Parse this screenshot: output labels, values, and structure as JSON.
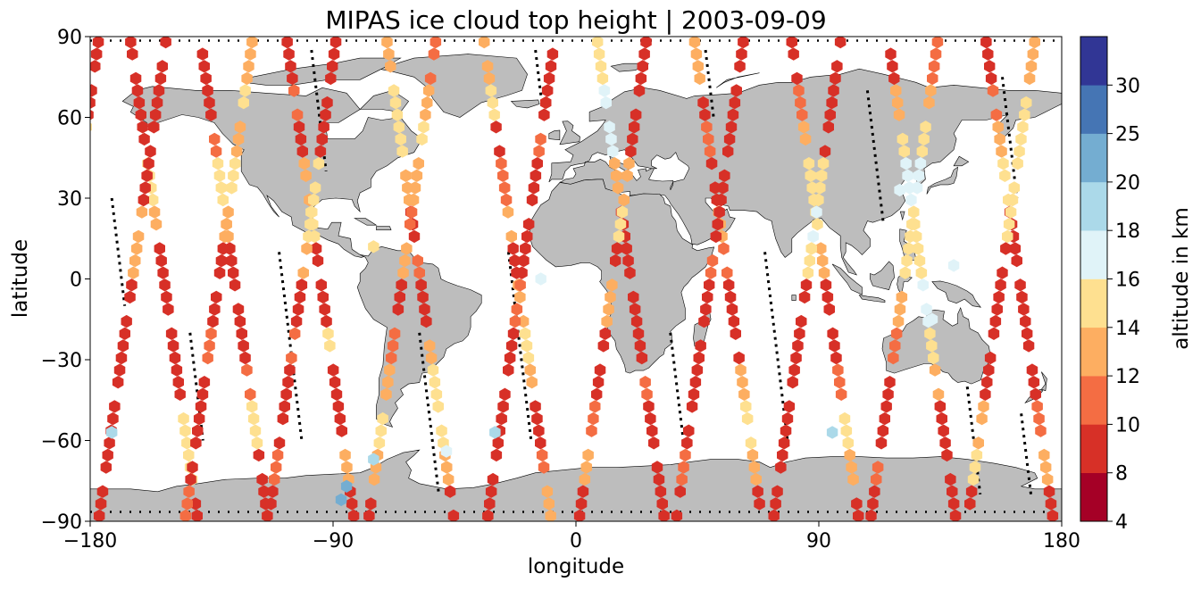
{
  "chart_data": {
    "type": "scatter",
    "title": "MIPAS ice cloud top height | 2003-09-09",
    "xlabel": "longitude",
    "ylabel": "latitude",
    "xlim": [
      -180,
      180
    ],
    "ylim": [
      -90,
      90
    ],
    "xticks": [
      "−180",
      "−90",
      "0",
      "90",
      "180"
    ],
    "xtick_values": [
      -180,
      -90,
      0,
      90,
      180
    ],
    "yticks": [
      "90",
      "60",
      "30",
      "0",
      "−30",
      "−60",
      "−90"
    ],
    "ytick_values": [
      90,
      60,
      30,
      0,
      -30,
      -60,
      -90
    ],
    "grid": false,
    "marker": "hexagon",
    "colorbar": {
      "label": "altitude in km",
      "boundaries": [
        4,
        8,
        10,
        12,
        14,
        16,
        18,
        20,
        25,
        30
      ],
      "tick_labels": [
        "4",
        "8",
        "10",
        "12",
        "14",
        "16",
        "18",
        "20",
        "25",
        "30"
      ],
      "colors": [
        "#a50026",
        "#d73027",
        "#f46d43",
        "#fdae61",
        "#fee090",
        "#e0f3f8",
        "#abd9e9",
        "#74add1",
        "#4575b4",
        "#313695"
      ]
    },
    "land_color": "#bdbdbd",
    "orbits": [
      {
        "lon": -177,
        "dir": "desc",
        "start_alt": 9,
        "pattern": [
          9,
          9,
          14,
          15,
          15,
          9,
          9,
          9,
          14,
          9,
          9,
          8
        ]
      },
      {
        "lon": -165,
        "dir": "asc",
        "start_alt": 8,
        "pattern": [
          8,
          8,
          9,
          14,
          13,
          9,
          8,
          8,
          9,
          14,
          14,
          8
        ]
      },
      {
        "lon": -152,
        "dir": "desc",
        "start_alt": 9,
        "pattern": [
          9,
          9,
          8,
          9,
          13,
          13,
          9,
          8,
          9,
          9,
          9,
          8
        ]
      },
      {
        "lon": -139,
        "dir": "asc",
        "start_alt": 8,
        "pattern": [
          8,
          9,
          10,
          14,
          13,
          8,
          8,
          9,
          10,
          14,
          8,
          9
        ]
      },
      {
        "lon": -120,
        "dir": "desc",
        "start_alt": 13,
        "pattern": [
          13,
          14,
          13,
          15,
          13,
          9,
          9,
          10,
          9,
          9,
          8,
          11
        ]
      },
      {
        "lon": -107,
        "dir": "asc",
        "start_alt": 9,
        "pattern": [
          9,
          10,
          9,
          13,
          14,
          9,
          9,
          14,
          9,
          9,
          13,
          9
        ]
      },
      {
        "lon": -89,
        "dir": "desc",
        "start_alt": 9,
        "pattern": [
          9,
          9,
          8,
          14,
          15,
          13,
          9,
          10,
          9,
          9,
          10,
          8
        ]
      },
      {
        "lon": -70,
        "dir": "asc",
        "start_alt": 13,
        "pattern": [
          13,
          15,
          14,
          13,
          9,
          10,
          9,
          13,
          15,
          14,
          13,
          9
        ]
      },
      {
        "lon": -52,
        "dir": "desc",
        "start_alt": 10,
        "pattern": [
          10,
          13,
          14,
          13,
          10,
          13,
          9,
          10,
          13,
          14,
          13,
          9
        ]
      },
      {
        "lon": -34,
        "dir": "asc",
        "start_alt": 13,
        "pattern": [
          13,
          14,
          9,
          10,
          13,
          9,
          13,
          14,
          13,
          9,
          10,
          13
        ]
      },
      {
        "lon": -8,
        "dir": "desc",
        "start_alt": 9,
        "pattern": [
          9,
          9,
          10,
          8,
          9,
          9,
          10,
          9,
          9,
          8,
          9,
          9
        ]
      },
      {
        "lon": 8,
        "dir": "asc",
        "start_alt": 15,
        "pattern": [
          15,
          17,
          17,
          13,
          9,
          9,
          8,
          9,
          10,
          9,
          8,
          9
        ]
      },
      {
        "lon": 26,
        "dir": "desc",
        "start_alt": 9,
        "pattern": [
          9,
          8,
          9,
          13,
          14,
          9,
          13,
          9,
          9,
          10,
          13,
          9
        ]
      },
      {
        "lon": 44,
        "dir": "asc",
        "start_alt": 13,
        "pattern": [
          13,
          9,
          10,
          9,
          13,
          10,
          9,
          9,
          13,
          14,
          13,
          9
        ]
      },
      {
        "lon": 62,
        "dir": "desc",
        "start_alt": 8,
        "pattern": [
          8,
          9,
          9,
          8,
          9,
          10,
          9,
          8,
          9,
          9,
          10,
          8
        ]
      },
      {
        "lon": 80,
        "dir": "asc",
        "start_alt": 9,
        "pattern": [
          9,
          10,
          13,
          14,
          15,
          13,
          9,
          9,
          10,
          14,
          13,
          9
        ]
      },
      {
        "lon": 98,
        "dir": "desc",
        "start_alt": 9,
        "pattern": [
          9,
          8,
          9,
          15,
          17,
          14,
          9,
          9,
          9,
          8,
          9,
          9
        ]
      },
      {
        "lon": 116,
        "dir": "asc",
        "start_alt": 9,
        "pattern": [
          9,
          13,
          14,
          17,
          15,
          15,
          17,
          14,
          13,
          9,
          9,
          8
        ]
      },
      {
        "lon": 134,
        "dir": "desc",
        "start_alt": 10,
        "pattern": [
          10,
          13,
          15,
          17,
          15,
          14,
          13,
          10,
          9,
          9,
          10,
          9
        ]
      },
      {
        "lon": 152,
        "dir": "asc",
        "start_alt": 9,
        "pattern": [
          9,
          10,
          13,
          14,
          9,
          9,
          8,
          9,
          9,
          10,
          13,
          9
        ]
      },
      {
        "lon": 170,
        "dir": "desc",
        "start_alt": 13,
        "pattern": [
          13,
          14,
          15,
          15,
          14,
          9,
          8,
          9,
          9,
          13,
          14,
          9
        ]
      }
    ],
    "isolated_points": [
      {
        "lon": -172,
        "lat": -57,
        "alt": 19
      },
      {
        "lon": -75,
        "lat": -67,
        "alt": 19
      },
      {
        "lon": -85,
        "lat": -77,
        "alt": 22
      },
      {
        "lon": -87,
        "lat": -82,
        "alt": 21
      },
      {
        "lon": -48,
        "lat": -64,
        "alt": 17
      },
      {
        "lon": -30,
        "lat": -57,
        "alt": 19
      },
      {
        "lon": 95,
        "lat": -57,
        "alt": 19
      },
      {
        "lon": 120,
        "lat": 33,
        "alt": 17
      },
      {
        "lon": 132,
        "lat": -15,
        "alt": 17
      },
      {
        "lon": -75,
        "lat": 12,
        "alt": 15
      },
      {
        "lon": -13,
        "lat": 0,
        "alt": 17
      },
      {
        "lon": 140,
        "lat": 5,
        "alt": 17
      }
    ],
    "missing_tracks": [
      {
        "lon": -172,
        "lat_from": 30,
        "lat_to": -10
      },
      {
        "lon": -143,
        "lat_from": -20,
        "lat_to": -60
      },
      {
        "lon": -110,
        "lat_from": 10,
        "lat_to": -60
      },
      {
        "lon": -98,
        "lat_from": 85,
        "lat_to": 40
      },
      {
        "lon": -58,
        "lat_from": -20,
        "lat_to": -80
      },
      {
        "lon": -25,
        "lat_from": 10,
        "lat_to": -60
      },
      {
        "lon": -15,
        "lat_from": 85,
        "lat_to": 65
      },
      {
        "lon": 35,
        "lat_from": -20,
        "lat_to": -60
      },
      {
        "lon": 48,
        "lat_from": 85,
        "lat_to": 60
      },
      {
        "lon": 70,
        "lat_from": 10,
        "lat_to": -60
      },
      {
        "lon": 108,
        "lat_from": 70,
        "lat_to": 20
      },
      {
        "lon": 145,
        "lat_from": -40,
        "lat_to": -80
      },
      {
        "lon": 158,
        "lat_from": 75,
        "lat_to": 30
      },
      {
        "lon": 165,
        "lat_from": -50,
        "lat_to": -80
      }
    ]
  }
}
